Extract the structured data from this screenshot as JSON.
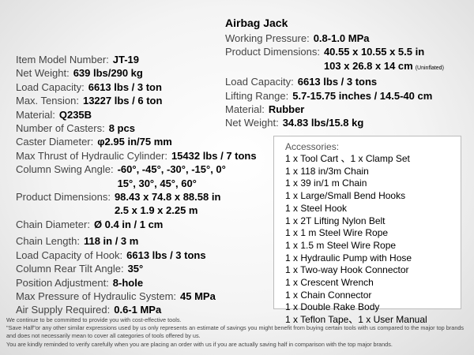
{
  "specs": [
    {
      "label": "Item Model Number:",
      "value": [
        "JT-19"
      ]
    },
    {
      "label": "Net Weight:",
      "value": [
        "639 lbs/290 kg"
      ]
    },
    {
      "label": "Load Capacity:",
      "value": [
        "6613 lbs / 3 ton"
      ]
    },
    {
      "label": "Max. Tension:",
      "value": [
        "13227 lbs / 6 ton"
      ]
    },
    {
      "label": "Material:",
      "value": [
        "Q235B"
      ]
    },
    {
      "label": "Number of Casters:",
      "value": [
        "8 pcs"
      ]
    },
    {
      "label": "Caster Diameter:",
      "value": [
        "φ2.95 in/75 mm"
      ]
    },
    {
      "label": "Max Thrust of Hydraulic Cylinder:",
      "value": [
        "15432 lbs / 7 tons"
      ]
    },
    {
      "label": "Column Swing Angle:",
      "value": [
        "-60°,  -45°,  -30°,  -15°,  0°",
        "15°,  30°,  45°,  60°"
      ]
    },
    {
      "label": "Product Dimensions:",
      "value": [
        "98.43 x 74.8 x 88.58 in",
        "2.5 x 1.9 x 2.25 m"
      ]
    },
    {
      "label": "Chain Diameter:",
      "value": [
        "Ø 0.4 in / 1 cm"
      ]
    },
    {
      "label": "Chain Length:",
      "value": [
        "118 in / 3 m"
      ]
    },
    {
      "label": "Load Capacity of Hook:",
      "value": [
        "6613 lbs / 3 tons"
      ]
    },
    {
      "label": "Column Rear Tilt Angle:",
      "value": [
        "35°"
      ]
    },
    {
      "label": "Position Adjustment:",
      "value": [
        "8-hole"
      ]
    },
    {
      "label": "Max Pressure of Hydraulic System:",
      "value": [
        "45 MPa"
      ]
    },
    {
      "label": "Air Supply Required:",
      "value": [
        "0.6-1 MPa"
      ]
    }
  ],
  "airbag": {
    "title": "Airbag Jack",
    "specs": [
      {
        "label": "Working Pressure:",
        "value": [
          "0.8-1.0 MPa"
        ]
      },
      {
        "label": "Product Dimensions:",
        "value": [
          "40.55 x 10.55 x 5.5 in",
          "103 x 26.8 x 14 cm"
        ],
        "note": "(Uninflated)"
      },
      {
        "label": "Load Capacity:",
        "value": [
          "6613 lbs / 3 tons"
        ]
      },
      {
        "label": "Lifting Range:",
        "value": [
          "5.7-15.75 inches / 14.5-40 cm"
        ]
      },
      {
        "label": "Material:",
        "value": [
          "Rubber"
        ]
      },
      {
        "label": "Net Weight:",
        "value": [
          "34.83 lbs/15.8 kg"
        ]
      }
    ]
  },
  "accessories": {
    "title": "Accessories:",
    "items": [
      "1 x Tool Cart 、1 x Clamp Set",
      "1 x 118 in/3m Chain",
      "1 x 39 in/1 m Chain",
      "1 x Large/Small Bend Hooks",
      "1 x Steel Hook",
      "1 x 2T Lifting Nylon Belt",
      "1 x 1 m Steel Wire Rope",
      "1 x 1.5 m Steel Wire Rope",
      "1 x Hydraulic Pump with Hose",
      "1 x Two-way Hook Connector",
      "1 x Crescent Wrench",
      "1 x Chain Connector",
      "1 x Double Rake Body",
      "1 x Teflon Tape、1 x User Manual"
    ]
  },
  "footer": [
    "We continue to be committed to provide you with cost-effective tools.",
    "\"Save Half\"or any other similar expressions used by us only represents an estimate of savings you might benefit from buying certain tools with us compared to the major top brands and does not necessarily mean to cover all categories of tools offered by us.",
    "You are kindly reminded to verify carefully when you are placing an order with us if you are actually saving half in comparison with the top major brands."
  ]
}
